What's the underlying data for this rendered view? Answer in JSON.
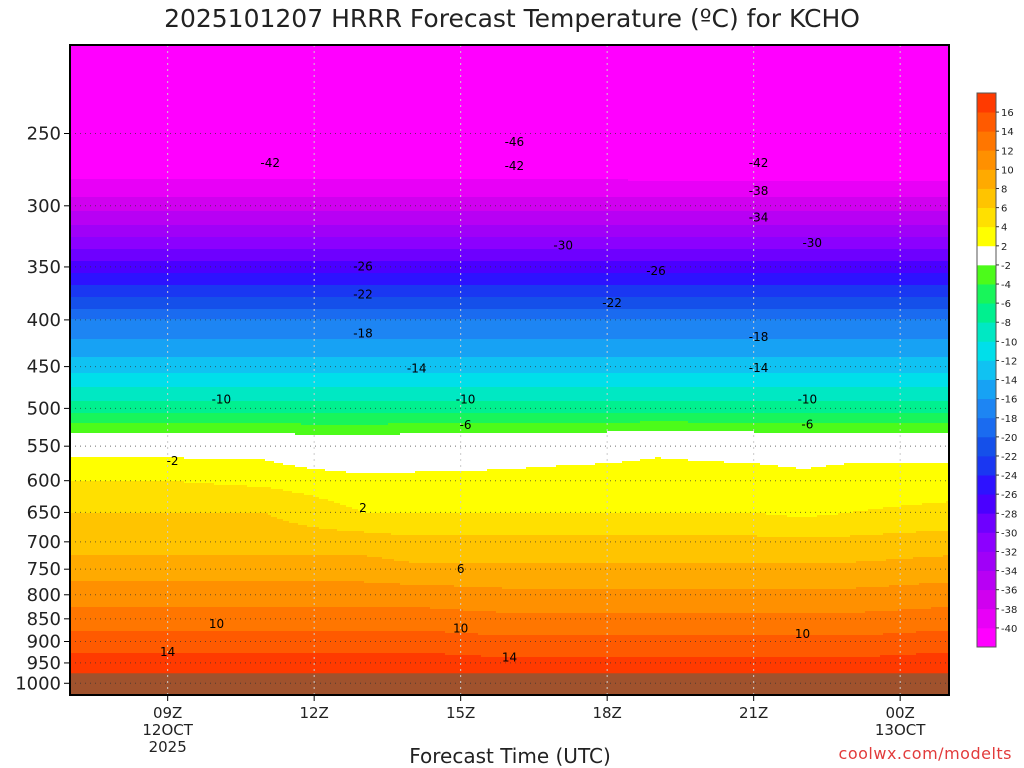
{
  "chart_data": {
    "type": "heatmap",
    "title": "2025101207 HRRR Forecast Temperature (ºC) for KCHO",
    "xlabel": "Forecast Time (UTC)",
    "ylabel": "",
    "x_range_hours": [
      7.0,
      25.0
    ],
    "y_range_hpa": [
      200,
      1030
    ],
    "y_scale": "log-pressure (inverted)",
    "x_ticks": [
      {
        "hour": 9,
        "label": "09Z",
        "sub": "12OCT",
        "sub2": "2025"
      },
      {
        "hour": 12,
        "label": "12Z",
        "sub": "",
        "sub2": ""
      },
      {
        "hour": 15,
        "label": "15Z",
        "sub": "",
        "sub2": ""
      },
      {
        "hour": 18,
        "label": "18Z",
        "sub": "",
        "sub2": ""
      },
      {
        "hour": 21,
        "label": "21Z",
        "sub": "",
        "sub2": ""
      },
      {
        "hour": 24,
        "label": "00Z",
        "sub": "13OCT",
        "sub2": ""
      }
    ],
    "y_ticks": [
      250,
      300,
      350,
      400,
      450,
      500,
      550,
      600,
      650,
      700,
      750,
      800,
      850,
      900,
      950,
      1000
    ],
    "profile_hours": [
      7,
      9,
      11,
      12,
      13,
      14,
      16,
      18,
      19,
      21,
      22,
      23,
      25
    ],
    "profile_levels_hpa": [
      200,
      250,
      300,
      350,
      400,
      450,
      500,
      550,
      600,
      650,
      700,
      750,
      800,
      850,
      900,
      950,
      1000,
      1030
    ],
    "profile_temps_c": [
      [
        -52,
        -45,
        -37,
        -27,
        -18,
        -13,
        -7,
        1,
        4,
        6,
        7,
        9,
        11,
        13,
        15,
        17,
        19,
        21
      ],
      [
        -52,
        -45,
        -37,
        -27,
        -18,
        -13,
        -7,
        1,
        4,
        6,
        7,
        9,
        11,
        13,
        15,
        17,
        19,
        21
      ],
      [
        -52,
        -45,
        -37,
        -27,
        -18,
        -13,
        -7,
        1,
        3.5,
        6,
        7,
        9,
        11,
        13,
        15,
        17,
        19,
        21
      ],
      [
        -52,
        -45,
        -37,
        -27,
        -18,
        -13,
        -7,
        0,
        3,
        5,
        7,
        9,
        11,
        13,
        15,
        17,
        19,
        21
      ],
      [
        -52,
        -45,
        -37,
        -27,
        -18,
        -13,
        -7,
        0,
        2.5,
        4,
        7,
        9,
        11,
        13,
        15,
        17,
        19,
        21
      ],
      [
        -52,
        -45,
        -37,
        -27,
        -18,
        -13,
        -7,
        0.5,
        2.5,
        4,
        6.5,
        8.5,
        11,
        13,
        15,
        17,
        19,
        21
      ],
      [
        -52,
        -45,
        -37,
        -27,
        -18,
        -13,
        -7,
        1,
        2.5,
        4,
        6.5,
        8.5,
        10.5,
        12.5,
        14.5,
        16.5,
        18.5,
        20.5
      ],
      [
        -50,
        -45,
        -37,
        -27,
        -18,
        -13,
        -7,
        1,
        3,
        4,
        6.5,
        8.5,
        10.5,
        12.5,
        14.5,
        16.5,
        18.5,
        20.5
      ],
      [
        -55,
        -46,
        -37,
        -27,
        -18,
        -13,
        -7,
        1.5,
        3,
        4,
        6.5,
        8.5,
        10.5,
        12.5,
        14.5,
        16.5,
        18.5,
        20.5
      ],
      [
        -55,
        -46,
        -37,
        -27,
        -18,
        -13,
        -7,
        1,
        3,
        4,
        6.5,
        8.5,
        10.5,
        12.5,
        14.5,
        16.5,
        18.5,
        20.5
      ],
      [
        -55,
        -46,
        -37,
        -27,
        -18,
        -13,
        -7,
        1,
        2.5,
        3.5,
        6.5,
        8.5,
        10.5,
        12.5,
        14.5,
        16.5,
        18.5,
        20.5
      ],
      [
        -55,
        -46,
        -37,
        -27,
        -18,
        -13,
        -7,
        1,
        3,
        4,
        6.5,
        8.5,
        10.5,
        12.5,
        14.5,
        16.5,
        18.5,
        20.5
      ],
      [
        -55,
        -46,
        -37,
        -27,
        -18,
        -13,
        -7,
        1,
        3,
        4.5,
        7,
        9,
        11,
        13,
        15,
        17,
        19,
        21
      ]
    ],
    "contour_labels": [
      {
        "text": "-46",
        "hour": 16.1,
        "hpa": 258
      },
      {
        "text": "-42",
        "hour": 11.1,
        "hpa": 272
      },
      {
        "text": "-42",
        "hour": 16.1,
        "hpa": 274
      },
      {
        "text": "-42",
        "hour": 21.1,
        "hpa": 272
      },
      {
        "text": "-38",
        "hour": 21.1,
        "hpa": 292
      },
      {
        "text": "-34",
        "hour": 21.1,
        "hpa": 312
      },
      {
        "text": "-30",
        "hour": 17.1,
        "hpa": 335
      },
      {
        "text": "-30",
        "hour": 22.2,
        "hpa": 333
      },
      {
        "text": "-26",
        "hour": 13.0,
        "hpa": 353
      },
      {
        "text": "-26",
        "hour": 19.0,
        "hpa": 357
      },
      {
        "text": "-22",
        "hour": 13.0,
        "hpa": 379
      },
      {
        "text": "-22",
        "hour": 18.1,
        "hpa": 387
      },
      {
        "text": "-18",
        "hour": 13.0,
        "hpa": 418
      },
      {
        "text": "-18",
        "hour": 21.1,
        "hpa": 422
      },
      {
        "text": "-14",
        "hour": 14.1,
        "hpa": 457
      },
      {
        "text": "-14",
        "hour": 21.1,
        "hpa": 456
      },
      {
        "text": "-10",
        "hour": 10.1,
        "hpa": 494
      },
      {
        "text": "-10",
        "hour": 15.1,
        "hpa": 494
      },
      {
        "text": "-10",
        "hour": 22.1,
        "hpa": 494
      },
      {
        "text": "-6",
        "hour": 15.1,
        "hpa": 527
      },
      {
        "text": "-6",
        "hour": 22.1,
        "hpa": 526
      },
      {
        "text": "-2",
        "hour": 9.1,
        "hpa": 577
      },
      {
        "text": "2",
        "hour": 13.0,
        "hpa": 649
      },
      {
        "text": "6",
        "hour": 15.0,
        "hpa": 757
      },
      {
        "text": "10",
        "hour": 10.0,
        "hpa": 870
      },
      {
        "text": "10",
        "hour": 15.0,
        "hpa": 880
      },
      {
        "text": "10",
        "hour": 22.0,
        "hpa": 892
      },
      {
        "text": "14",
        "hour": 9.0,
        "hpa": 934
      },
      {
        "text": "14",
        "hour": 16.0,
        "hpa": 947
      }
    ],
    "colorbar_levels": [
      -40,
      -38,
      -36,
      -34,
      -32,
      -30,
      -28,
      -26,
      -24,
      -22,
      -20,
      -18,
      -16,
      -14,
      -12,
      -10,
      -8,
      -6,
      -4,
      -2,
      2,
      4,
      6,
      8,
      10,
      12,
      14,
      16
    ],
    "colorbar_colors": [
      "#ff00ff",
      "#e800f7",
      "#d000ef",
      "#b800f4",
      "#a000f8",
      "#8c00ff",
      "#6e00ff",
      "#4a00ff",
      "#2d12ff",
      "#1a37f2",
      "#1550ea",
      "#1a6bf0",
      "#1d85f3",
      "#17a2f4",
      "#10c2f2",
      "#00dfea",
      "#00e8c3",
      "#00f08f",
      "#18f55a",
      "#4cfb1a",
      "#ffffff",
      "#ffff00",
      "#ffe000",
      "#ffc400",
      "#ffaa00",
      "#ff9000",
      "#ff7600",
      "#ff5a00",
      "#ff3a00"
    ]
  },
  "credit": "coolwx.com/modelts"
}
